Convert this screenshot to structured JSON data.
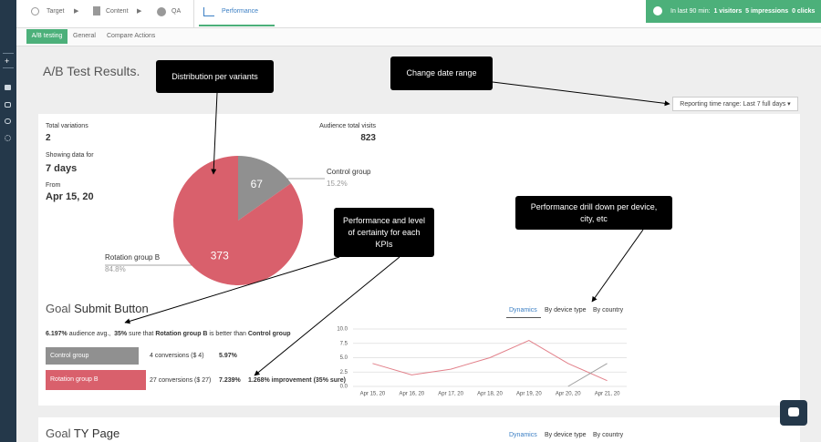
{
  "nav": {
    "steps": [
      "Target",
      "Content",
      "QA",
      "Performance"
    ]
  },
  "activity": {
    "label": "In last 90 min:",
    "items": [
      "1 visitors",
      "5 impressions",
      "0 clicks"
    ]
  },
  "tabs": [
    "A/B testing",
    "General",
    "Compare Actions"
  ],
  "page_title": "A/B Test Results.",
  "time_range": "Reporting time range: Last 7 full days",
  "stats": {
    "total_variations_label": "Total variations",
    "total_variations": "2",
    "showing_label": "Showing data for",
    "showing": "7 days",
    "from_label": "From",
    "from": "Apr 15, 20",
    "visits_label": "Audience total visits",
    "visits": "823"
  },
  "chart_data": [
    {
      "type": "pie",
      "categories": [
        "Control group",
        "Rotation group B"
      ],
      "values": [
        67,
        373
      ],
      "percent_labels": [
        "15.2%",
        "84.8%"
      ],
      "colors": [
        "#909090",
        "#d9606c"
      ]
    },
    {
      "type": "line",
      "categories": [
        "Apr 15, 20",
        "Apr 16, 20",
        "Apr 17, 20",
        "Apr 18, 20",
        "Apr 19, 20",
        "Apr 20, 20",
        "Apr 21, 20"
      ],
      "series": [
        {
          "color": "#e2808a",
          "values": [
            4,
            2,
            3,
            5,
            8,
            4,
            1
          ]
        },
        {
          "color": "#a0a0a0",
          "values": [
            null,
            null,
            null,
            null,
            null,
            0,
            4
          ]
        }
      ],
      "ylim": [
        0,
        10
      ],
      "yticks": [
        {
          "value": 0,
          "label": "0.0"
        },
        {
          "value": 2.5,
          "label": "2.5"
        },
        {
          "value": 5,
          "label": "5.0"
        },
        {
          "value": 7.5,
          "label": "7.5"
        },
        {
          "value": 10,
          "label": "10.0"
        }
      ],
      "grid": true
    }
  ],
  "goals": [
    {
      "prefix": "Goal",
      "name": "Submit Button",
      "summary": [
        "6.197%",
        "audience avg.,",
        "35%",
        "sure that",
        "Rotation group B",
        "is better than",
        "Control group"
      ],
      "rows": [
        {
          "variant": "Control group",
          "conversions": "4 conversions ($ 4)",
          "rate": "5.97%"
        },
        {
          "variant": "Rotation group B",
          "conversions": "27 conversions ($ 27)",
          "rate": "7.239%",
          "improvement": "1.268% improvement (35% sure)"
        }
      ],
      "views": [
        "Dynamics",
        "By device type",
        "By country"
      ]
    },
    {
      "prefix": "Goal",
      "name": "TY Page",
      "views": [
        "Dynamics",
        "By device type",
        "By country"
      ]
    }
  ],
  "annotations": [
    "Distribution per variants",
    "Change date range",
    "Performance and level of certainty for each KPIs",
    "Performance drill down per device, city, etc"
  ]
}
